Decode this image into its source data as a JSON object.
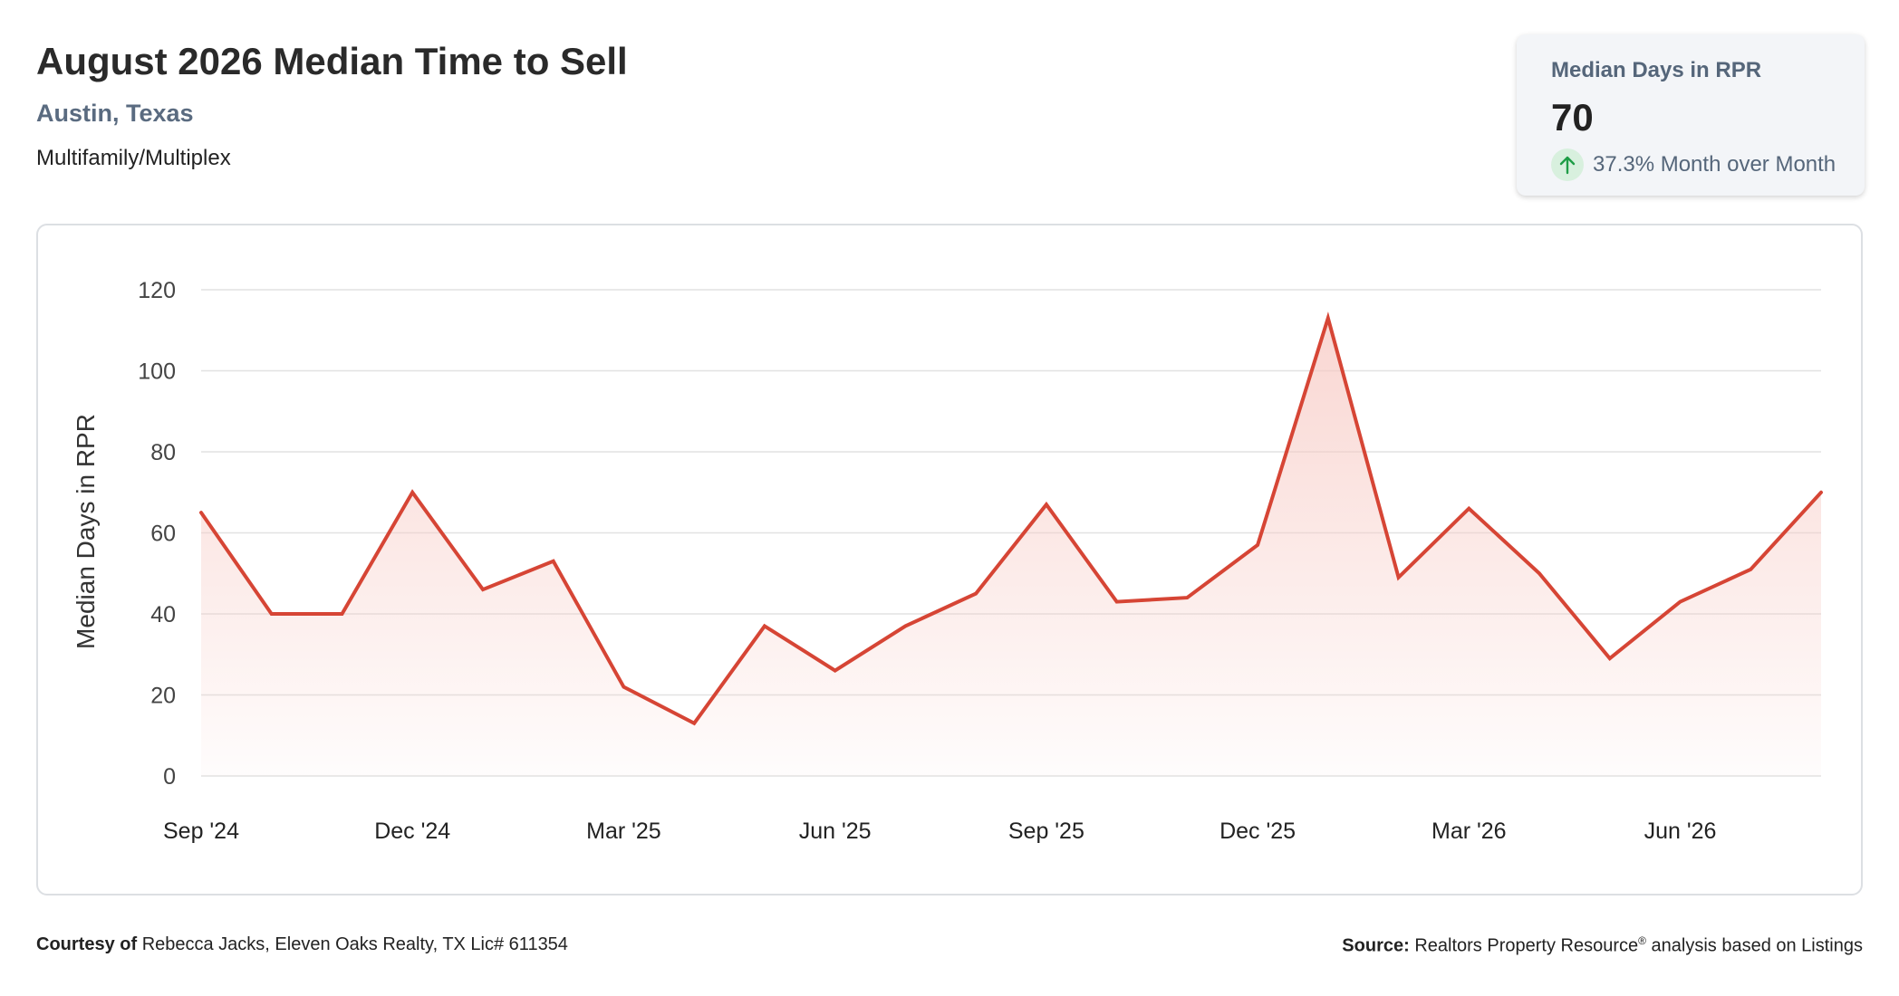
{
  "header": {
    "title": "August 2026 Median Time to Sell",
    "location": "Austin, Texas",
    "property_type": "Multifamily/Multiplex"
  },
  "kpi": {
    "label": "Median Days in RPR",
    "value": "70",
    "change": "37.3% Month over Month",
    "direction": "up",
    "arrow_icon": "arrow-up-icon",
    "arrow_color": "#1f9d47"
  },
  "chart_data": {
    "type": "area",
    "ylabel": "Median Days in RPR",
    "ylim": [
      0,
      120
    ],
    "yticks": [
      0,
      20,
      40,
      60,
      80,
      100,
      120
    ],
    "grid": true,
    "line_color": "#d64535",
    "fill_color": "#f7c9c3",
    "x": [
      "Sep '24",
      "Oct '24",
      "Nov '24",
      "Dec '24",
      "Jan '25",
      "Feb '25",
      "Mar '25",
      "Apr '25",
      "May '25",
      "Jun '25",
      "Jul '25",
      "Aug '25",
      "Sep '25",
      "Oct '25",
      "Nov '25",
      "Dec '25",
      "Jan '26",
      "Feb '26",
      "Mar '26",
      "Apr '26",
      "May '26",
      "Jun '26",
      "Jul '26",
      "Aug '26"
    ],
    "xtick_labels": [
      "Sep '24",
      "Dec '24",
      "Mar '25",
      "Jun '25",
      "Sep '25",
      "Dec '25",
      "Mar '26",
      "Jun '26"
    ],
    "series": [
      {
        "values": [
          65,
          40,
          40,
          70,
          46,
          53,
          22,
          13,
          37,
          26,
          37,
          45,
          67,
          43,
          44,
          57,
          113,
          49,
          66,
          50,
          29,
          43,
          51,
          70
        ]
      }
    ]
  },
  "footer": {
    "courtesy_label": "Courtesy of",
    "courtesy_text": "Rebecca Jacks, Eleven Oaks Realty, TX Lic# 611354",
    "source_label": "Source:",
    "source_text": "Realtors Property Resource",
    "source_mark": "®",
    "source_suffix": "analysis based on Listings"
  }
}
